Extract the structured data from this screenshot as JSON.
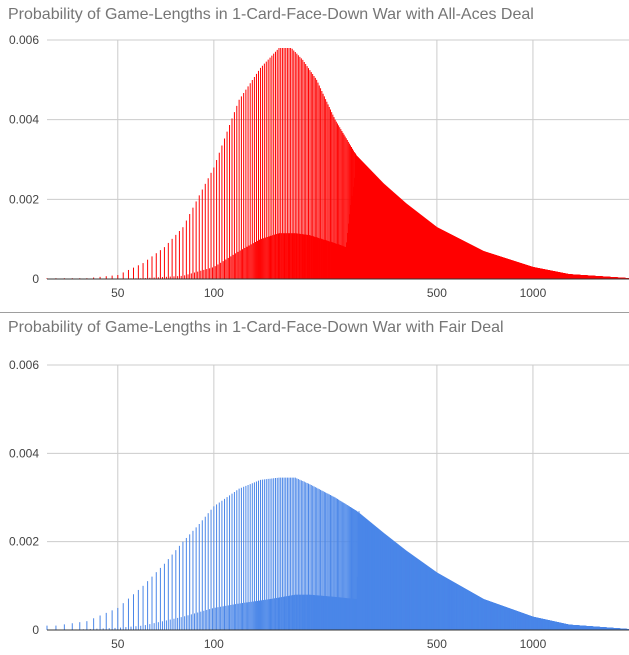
{
  "chart_data": [
    {
      "type": "bar",
      "title": "Probability of Game-Lengths in 1-Card-Face-Down War with All-Aces Deal",
      "xscale": "log",
      "xlim": [
        30,
        2000
      ],
      "ylim": [
        0,
        0.006
      ],
      "x_ticks": [
        50,
        100,
        500,
        1000
      ],
      "y_ticks": [
        0,
        0.002,
        0.004,
        0.006
      ],
      "y_tick_labels": [
        "0",
        "0.002",
        "0.004",
        "0.006"
      ],
      "grid": true,
      "legend": "none",
      "color": "#ff0000",
      "distribution": {
        "envelope_points": [
          [
            40,
            2e-05
          ],
          [
            50,
            0.0001
          ],
          [
            60,
            0.0004
          ],
          [
            70,
            0.0008
          ],
          [
            80,
            0.0013
          ],
          [
            90,
            0.0021
          ],
          [
            100,
            0.0028
          ],
          [
            110,
            0.0037
          ],
          [
            120,
            0.0045
          ],
          [
            140,
            0.0053
          ],
          [
            160,
            0.0058
          ],
          [
            175,
            0.0058
          ],
          [
            190,
            0.0055
          ],
          [
            210,
            0.005
          ],
          [
            240,
            0.004
          ],
          [
            280,
            0.0031
          ],
          [
            340,
            0.0024
          ],
          [
            400,
            0.0019
          ],
          [
            500,
            0.0013
          ],
          [
            700,
            0.0007
          ],
          [
            1000,
            0.0003
          ],
          [
            1300,
            0.00012
          ],
          [
            2000,
            2e-05
          ]
        ],
        "base_points": [
          [
            40,
            0.0
          ],
          [
            60,
            2e-05
          ],
          [
            80,
            8e-05
          ],
          [
            100,
            0.0003
          ],
          [
            120,
            0.0007
          ],
          [
            140,
            0.001
          ],
          [
            160,
            0.00115
          ],
          [
            180,
            0.00115
          ],
          [
            200,
            0.0011
          ],
          [
            240,
            0.0009
          ],
          [
            260,
            0.0008
          ],
          [
            280,
            0.0031
          ],
          [
            340,
            0.0024
          ],
          [
            400,
            0.0019
          ],
          [
            500,
            0.0013
          ],
          [
            700,
            0.0007
          ],
          [
            1000,
            0.0003
          ],
          [
            1300,
            0.00012
          ],
          [
            2000,
            2e-05
          ]
        ],
        "spike_period": 2,
        "spike_end": 275
      }
    },
    {
      "type": "bar",
      "title": "Probability of Game-Lengths in 1-Card-Face-Down War with Fair Deal",
      "xscale": "log",
      "xlim": [
        30,
        2000
      ],
      "ylim": [
        0,
        0.006
      ],
      "x_ticks": [
        50,
        100,
        500,
        1000
      ],
      "y_ticks": [
        0,
        0.002,
        0.004,
        0.006
      ],
      "y_tick_labels": [
        "0",
        "0.002",
        "0.004",
        "0.006"
      ],
      "grid": true,
      "legend": "none",
      "color": "#4a86e8",
      "distribution": {
        "envelope_points": [
          [
            32,
            0.0001
          ],
          [
            40,
            0.0002
          ],
          [
            50,
            0.0005
          ],
          [
            60,
            0.001
          ],
          [
            70,
            0.0015
          ],
          [
            80,
            0.002
          ],
          [
            90,
            0.0024
          ],
          [
            100,
            0.0028
          ],
          [
            120,
            0.0032
          ],
          [
            140,
            0.0034
          ],
          [
            160,
            0.00345
          ],
          [
            180,
            0.00345
          ],
          [
            200,
            0.0033
          ],
          [
            240,
            0.003
          ],
          [
            280,
            0.0027
          ],
          [
            340,
            0.0022
          ],
          [
            400,
            0.0018
          ],
          [
            500,
            0.0013
          ],
          [
            700,
            0.0007
          ],
          [
            1000,
            0.0003
          ],
          [
            1300,
            0.00012
          ],
          [
            2000,
            2e-05
          ]
        ],
        "base_points": [
          [
            32,
            0.0
          ],
          [
            40,
            2e-05
          ],
          [
            50,
            5e-05
          ],
          [
            60,
            0.0001
          ],
          [
            80,
            0.0003
          ],
          [
            100,
            0.0005
          ],
          [
            120,
            0.0006
          ],
          [
            150,
            0.0007
          ],
          [
            180,
            0.0008
          ],
          [
            200,
            0.0008
          ],
          [
            240,
            0.00075
          ],
          [
            280,
            0.0007
          ],
          [
            284,
            0.0027
          ],
          [
            340,
            0.0022
          ],
          [
            400,
            0.0018
          ],
          [
            500,
            0.0013
          ],
          [
            700,
            0.0007
          ],
          [
            1000,
            0.0003
          ],
          [
            1300,
            0.00012
          ],
          [
            2000,
            2e-05
          ]
        ],
        "spike_period": 2,
        "spike_end": 285
      }
    }
  ]
}
